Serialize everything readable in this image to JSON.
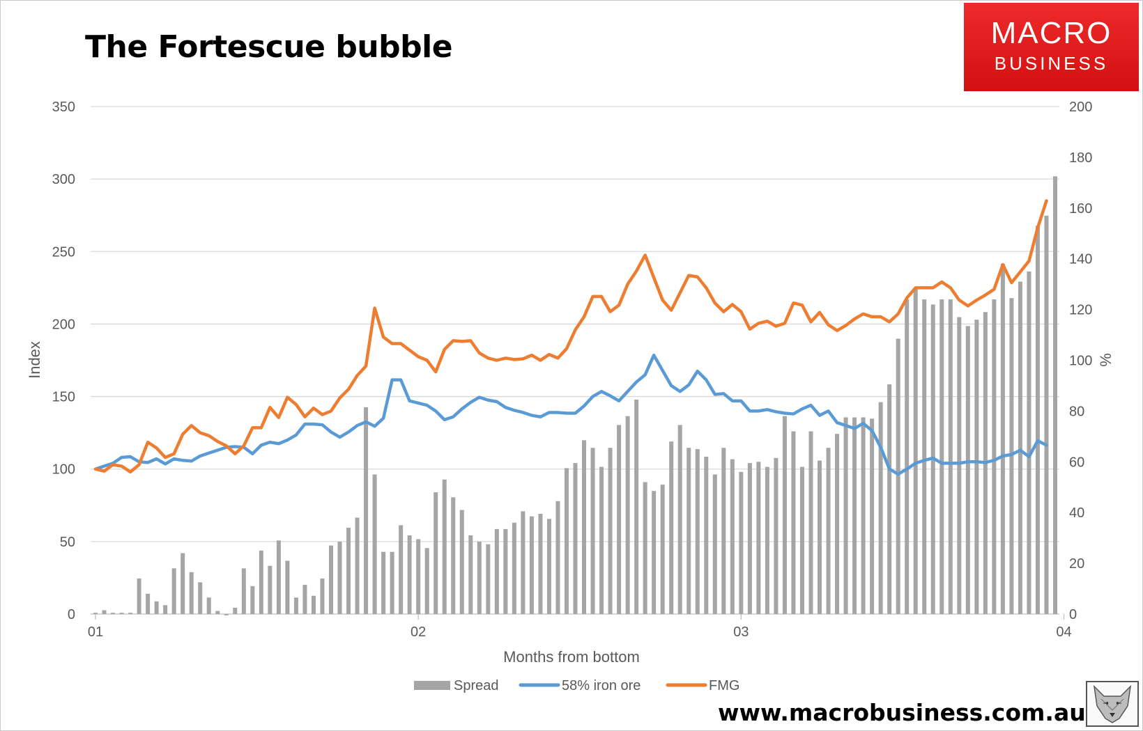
{
  "title": "The Fortescue bubble",
  "logo": {
    "line1": "MACRO",
    "line2": "BUSINESS"
  },
  "url": "www.macrobusiness.com.au",
  "colors": {
    "spread": "#a5a5a5",
    "iron_ore": "#5b9bd5",
    "fmg": "#ed7d31",
    "brand_red": "#e01e1e"
  },
  "chart_data": {
    "type": "bar",
    "xlabel": "Months from bottom",
    "ylabel": "Index",
    "y2label": "%",
    "xticks": [
      {
        "label": "01",
        "index": 0
      },
      {
        "label": "02",
        "index": 37
      },
      {
        "label": "03",
        "index": 74
      },
      {
        "label": "04",
        "index": 111
      }
    ],
    "ylim": [
      0,
      350
    ],
    "yticks": [
      0,
      50,
      100,
      150,
      200,
      250,
      300,
      350
    ],
    "y2lim": [
      0,
      200
    ],
    "y2ticks": [
      0,
      20,
      40,
      60,
      80,
      100,
      120,
      140,
      160,
      180,
      200
    ],
    "legend": [
      "Spread",
      "58% iron ore",
      "FMG"
    ],
    "legend_position": "bottom",
    "grid": true,
    "series": [
      {
        "name": "Spread",
        "kind": "bar",
        "axis": "right",
        "values": [
          0.5,
          1.5,
          0.5,
          0.5,
          0.5,
          14,
          8,
          5,
          3.5,
          18,
          24,
          16.5,
          12.5,
          6.5,
          1.2,
          -0.5,
          2.5,
          18,
          11,
          25,
          19,
          29,
          21,
          6.5,
          11.5,
          7.2,
          14,
          27,
          28.5,
          34,
          38,
          81.5,
          55,
          24.5,
          24.5,
          35,
          31,
          29.5,
          26,
          48,
          53,
          46,
          41,
          31,
          28.5,
          27.5,
          33.5,
          33.5,
          36,
          40.5,
          38.5,
          39.5,
          37.5,
          44.5,
          57.5,
          59.5,
          68.5,
          65.5,
          58,
          65.5,
          74.5,
          78,
          84.5,
          52,
          48.5,
          51,
          68,
          74.5,
          65.5,
          65,
          62,
          55,
          65.5,
          61,
          56,
          59.5,
          60,
          58,
          61.5,
          78,
          72,
          58,
          72,
          60.5,
          65.5,
          71,
          77.5,
          77.5,
          77.5,
          77,
          83.5,
          90.5,
          108.5,
          124,
          128,
          124,
          122,
          124,
          124,
          117,
          113.5,
          116,
          119,
          124,
          138,
          124.5,
          131,
          135,
          153,
          157,
          172.5
        ]
      },
      {
        "name": "58% iron ore",
        "kind": "line",
        "axis": "left",
        "values": [
          100,
          102,
          104,
          108,
          108.5,
          105,
          104.5,
          107,
          103.5,
          107,
          106,
          105.5,
          109,
          111,
          113,
          115,
          115.5,
          115,
          110.5,
          116.5,
          118.5,
          117.5,
          120,
          123.5,
          131,
          131,
          130.5,
          125.5,
          122,
          125.5,
          130,
          132.5,
          129.5,
          135,
          161.5,
          161.5,
          147,
          145.5,
          144,
          140,
          134,
          136,
          141.5,
          146,
          149.5,
          147.5,
          146.5,
          142.5,
          140.5,
          139,
          137,
          136,
          139,
          139,
          138.5,
          138.5,
          143.5,
          150,
          153.5,
          150.5,
          147,
          153.5,
          160,
          165,
          178.5,
          168,
          157.5,
          153.5,
          158,
          167.5,
          161.5,
          151.5,
          152,
          147,
          147,
          140,
          140,
          141,
          139.5,
          138.5,
          138,
          141.5,
          144,
          137,
          140,
          132,
          130,
          128,
          131.5,
          126.5,
          115,
          100,
          96.5,
          100,
          104,
          106,
          107.5,
          104,
          104,
          104,
          105,
          105,
          104.5,
          106,
          109,
          110,
          113,
          108.5,
          119.5,
          116.5
        ]
      },
      {
        "name": "FMG",
        "kind": "line",
        "axis": "left",
        "values": [
          100,
          98.5,
          103,
          102,
          98,
          103,
          118.5,
          114.5,
          108,
          110.5,
          124,
          130,
          125,
          123,
          119,
          116,
          110.5,
          116,
          128.5,
          128.5,
          142.5,
          135.5,
          149.5,
          144.5,
          136,
          142,
          137.5,
          140,
          149,
          155,
          164.5,
          171,
          211,
          191,
          186.5,
          186.5,
          182,
          177.5,
          175,
          167,
          182.5,
          188.5,
          188,
          188.5,
          180,
          176.5,
          175,
          176.5,
          175.5,
          176,
          178.5,
          175,
          179,
          176.5,
          183,
          196,
          205,
          219,
          219,
          208.5,
          213,
          227.5,
          236.5,
          247.5,
          232,
          216.5,
          209.5,
          221.5,
          233.5,
          232.5,
          225,
          214.5,
          208.5,
          213.5,
          208.5,
          196.5,
          200.5,
          202,
          198.5,
          200.5,
          214.5,
          213,
          201.5,
          208,
          199.5,
          195.5,
          199,
          203.5,
          207,
          205,
          205,
          201.5,
          207,
          218,
          225,
          225,
          225,
          229,
          225,
          216.5,
          212.5,
          216.5,
          220,
          224,
          241,
          228.5,
          236,
          243.5,
          266.5,
          285
        ]
      }
    ]
  }
}
